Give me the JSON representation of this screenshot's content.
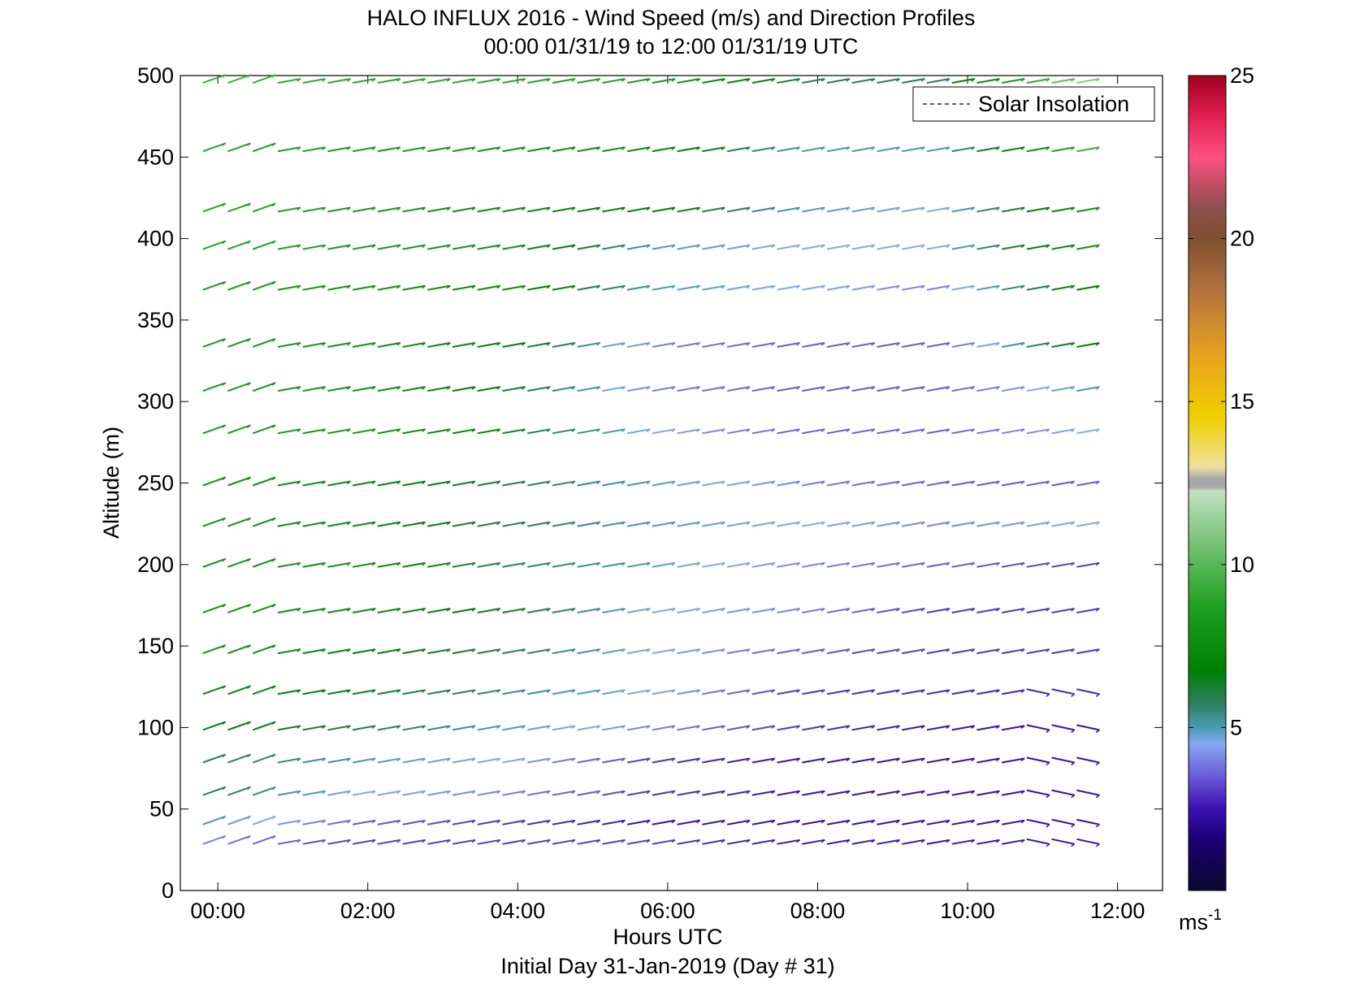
{
  "chart_data": {
    "type": "barb",
    "title": "HALO INFLUX 2016 - Wind Speed (m/s) and Direction Profiles",
    "subtitle": "00:00 01/31/19 to 12:00 01/31/19  UTC",
    "xlabel": "Hours UTC",
    "footer": "Initial Day 31-Jan-2019 (Day # 31)",
    "ylabel": "Altitude (m)",
    "xlim": [
      -0.5,
      12.6
    ],
    "ylim": [
      0,
      500
    ],
    "x_ticks": [
      {
        "value": 0,
        "label": "00:00"
      },
      {
        "value": 2,
        "label": "02:00"
      },
      {
        "value": 4,
        "label": "04:00"
      },
      {
        "value": 6,
        "label": "06:00"
      },
      {
        "value": 8,
        "label": "08:00"
      },
      {
        "value": 10,
        "label": "10:00"
      },
      {
        "value": 12,
        "label": "12:00"
      }
    ],
    "y_ticks": [
      0,
      50,
      100,
      150,
      200,
      250,
      300,
      350,
      400,
      450,
      500
    ],
    "time_step_hours": 0.333,
    "time_start": -0.2,
    "time_count": 36,
    "levels": [
      {
        "altitude": 30,
        "speeds_anchor": [
          4,
          3,
          3,
          3,
          2.5,
          2.5,
          2.5
        ]
      },
      {
        "altitude": 42,
        "speeds_anchor": [
          5,
          3.5,
          3,
          2.5,
          2.5,
          2.5,
          2.5
        ]
      },
      {
        "altitude": 60,
        "speeds_anchor": [
          6,
          4.5,
          4,
          3,
          2.5,
          2.5,
          2.5
        ]
      },
      {
        "altitude": 80,
        "speeds_anchor": [
          6,
          5,
          4.5,
          3,
          2.5,
          2.5,
          2.5
        ]
      },
      {
        "altitude": 100,
        "speeds_anchor": [
          7,
          6,
          5,
          4,
          3,
          2.5,
          2.5
        ]
      },
      {
        "altitude": 122,
        "speeds_anchor": [
          7.5,
          6.5,
          5.5,
          4.5,
          3,
          2.8,
          2.8
        ]
      },
      {
        "altitude": 147,
        "speeds_anchor": [
          8,
          7,
          6,
          4.5,
          3.5,
          3,
          3
        ]
      },
      {
        "altitude": 172,
        "speeds_anchor": [
          8,
          7.5,
          6.5,
          4.5,
          4,
          3,
          3
        ]
      },
      {
        "altitude": 200,
        "speeds_anchor": [
          8,
          7.5,
          6,
          5,
          4,
          3.5,
          3
        ]
      },
      {
        "altitude": 225,
        "speeds_anchor": [
          8,
          7.5,
          6,
          5,
          4.5,
          4,
          4.5
        ]
      },
      {
        "altitude": 250,
        "speeds_anchor": [
          8,
          7.5,
          6,
          5,
          4,
          3.5,
          3.5
        ]
      },
      {
        "altitude": 282,
        "speeds_anchor": [
          8.5,
          8,
          6.5,
          4.5,
          3.5,
          3.5,
          4.5
        ]
      },
      {
        "altitude": 308,
        "speeds_anchor": [
          8.5,
          8,
          6.5,
          4,
          3.5,
          3.5,
          5
        ]
      },
      {
        "altitude": 335,
        "speeds_anchor": [
          8.5,
          8,
          7,
          4,
          3.5,
          3.5,
          7
        ]
      },
      {
        "altitude": 370,
        "speeds_anchor": [
          8.5,
          8,
          7.5,
          5,
          4.5,
          4,
          7
        ]
      },
      {
        "altitude": 395,
        "speeds_anchor": [
          9,
          8.5,
          8,
          5,
          4.5,
          4.5,
          8
        ]
      },
      {
        "altitude": 418,
        "speeds_anchor": [
          9,
          8.5,
          7.5,
          7,
          5,
          4.5,
          8
        ]
      },
      {
        "altitude": 455,
        "speeds_anchor": [
          9,
          8.5,
          8,
          7.5,
          5,
          5,
          9.5
        ]
      },
      {
        "altitude": 497,
        "speeds_anchor": [
          9.5,
          9,
          9,
          8.5,
          6,
          6,
          11
        ]
      }
    ],
    "legend": {
      "entries": [
        "Solar Insolation"
      ],
      "placement": "top-right",
      "style": "dashed"
    },
    "colorbar": {
      "range": [
        0,
        25
      ],
      "ticks": [
        5,
        10,
        15,
        20,
        25
      ],
      "unit_base": "ms",
      "unit_exp": "-1"
    }
  }
}
